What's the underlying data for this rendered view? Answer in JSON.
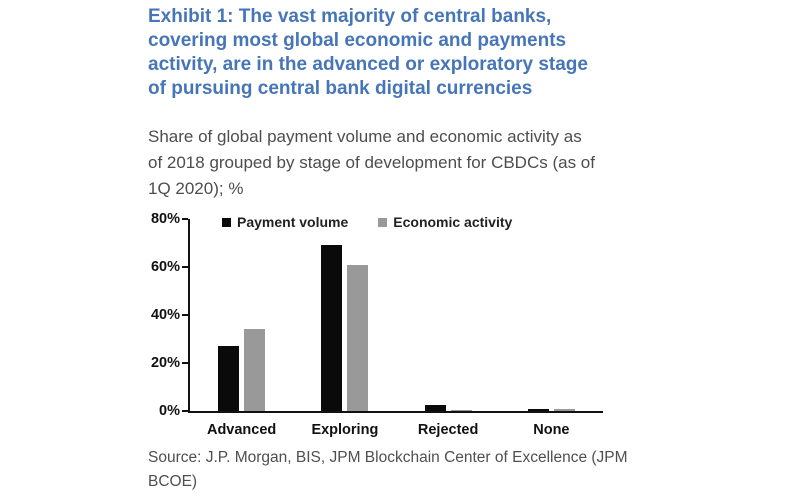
{
  "exhibit": {
    "title": "Exhibit 1: The vast majority of central banks,\ncovering most global economic and payments\nactivity, are in the advanced or exploratory stage\nof pursuing central bank digital currencies",
    "subtitle": "Share of global payment volume and economic activity as\nof 2018 grouped by stage of development for CBDCs (as of\n1Q 2020); %",
    "source": "Source: J.P. Morgan, BIS, JPM Blockchain Center of Excellence (JPM\nBCOE)",
    "title_color": "#4676b8"
  },
  "chart_data": {
    "type": "bar",
    "title": "Share of global payment volume and economic activity as of 2018 grouped by stage of development for CBDCs (as of 1Q 2020); %",
    "categories": [
      "Advanced",
      "Exploring",
      "Rejected",
      "None"
    ],
    "series": [
      {
        "name": "Payment volume",
        "color": "#0a0a0a",
        "values": [
          27,
          69,
          2.5,
          1
        ]
      },
      {
        "name": "Economic activity",
        "color": "#999999",
        "values": [
          34,
          61,
          0.5,
          1
        ]
      }
    ],
    "xlabel": "",
    "ylabel": "%",
    "ylim": [
      0,
      80
    ],
    "yticks": [
      {
        "value": 0,
        "label": "0%"
      },
      {
        "value": 20,
        "label": "20%"
      },
      {
        "value": 40,
        "label": "40%"
      },
      {
        "value": 60,
        "label": "60%"
      },
      {
        "value": 80,
        "label": "80%"
      }
    ],
    "grid": false,
    "legend_position": "top-inside"
  }
}
